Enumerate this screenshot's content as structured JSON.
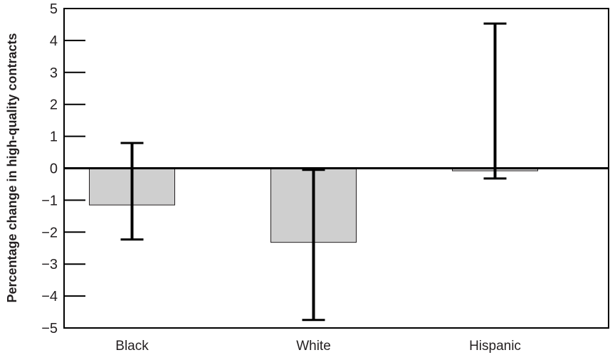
{
  "chart_data": {
    "type": "bar",
    "title": "",
    "xlabel": "",
    "ylabel": "Percentage change in high-quality contracts",
    "categories": [
      "Black",
      "White",
      "Hispanic"
    ],
    "values": [
      -1.15,
      -2.32,
      -0.08
    ],
    "error_low": [
      -2.23,
      -4.75,
      -0.32
    ],
    "error_high": [
      0.79,
      -0.05,
      4.53
    ],
    "ylim": [
      -5,
      5
    ],
    "yticks": [
      5,
      4,
      3,
      2,
      1,
      0,
      -1,
      -2,
      -3,
      -4,
      -5
    ],
    "ytick_labels": [
      "5",
      "4",
      "3",
      "2",
      "1",
      "0",
      "−1",
      "−2",
      "−3",
      "−4",
      "−5"
    ],
    "grid": false,
    "legend": "none",
    "colors": {
      "bar_fill": "#cfcfcf",
      "bar_stroke": "#231f20",
      "error_bar": "#000000",
      "axis": "#000000"
    }
  }
}
